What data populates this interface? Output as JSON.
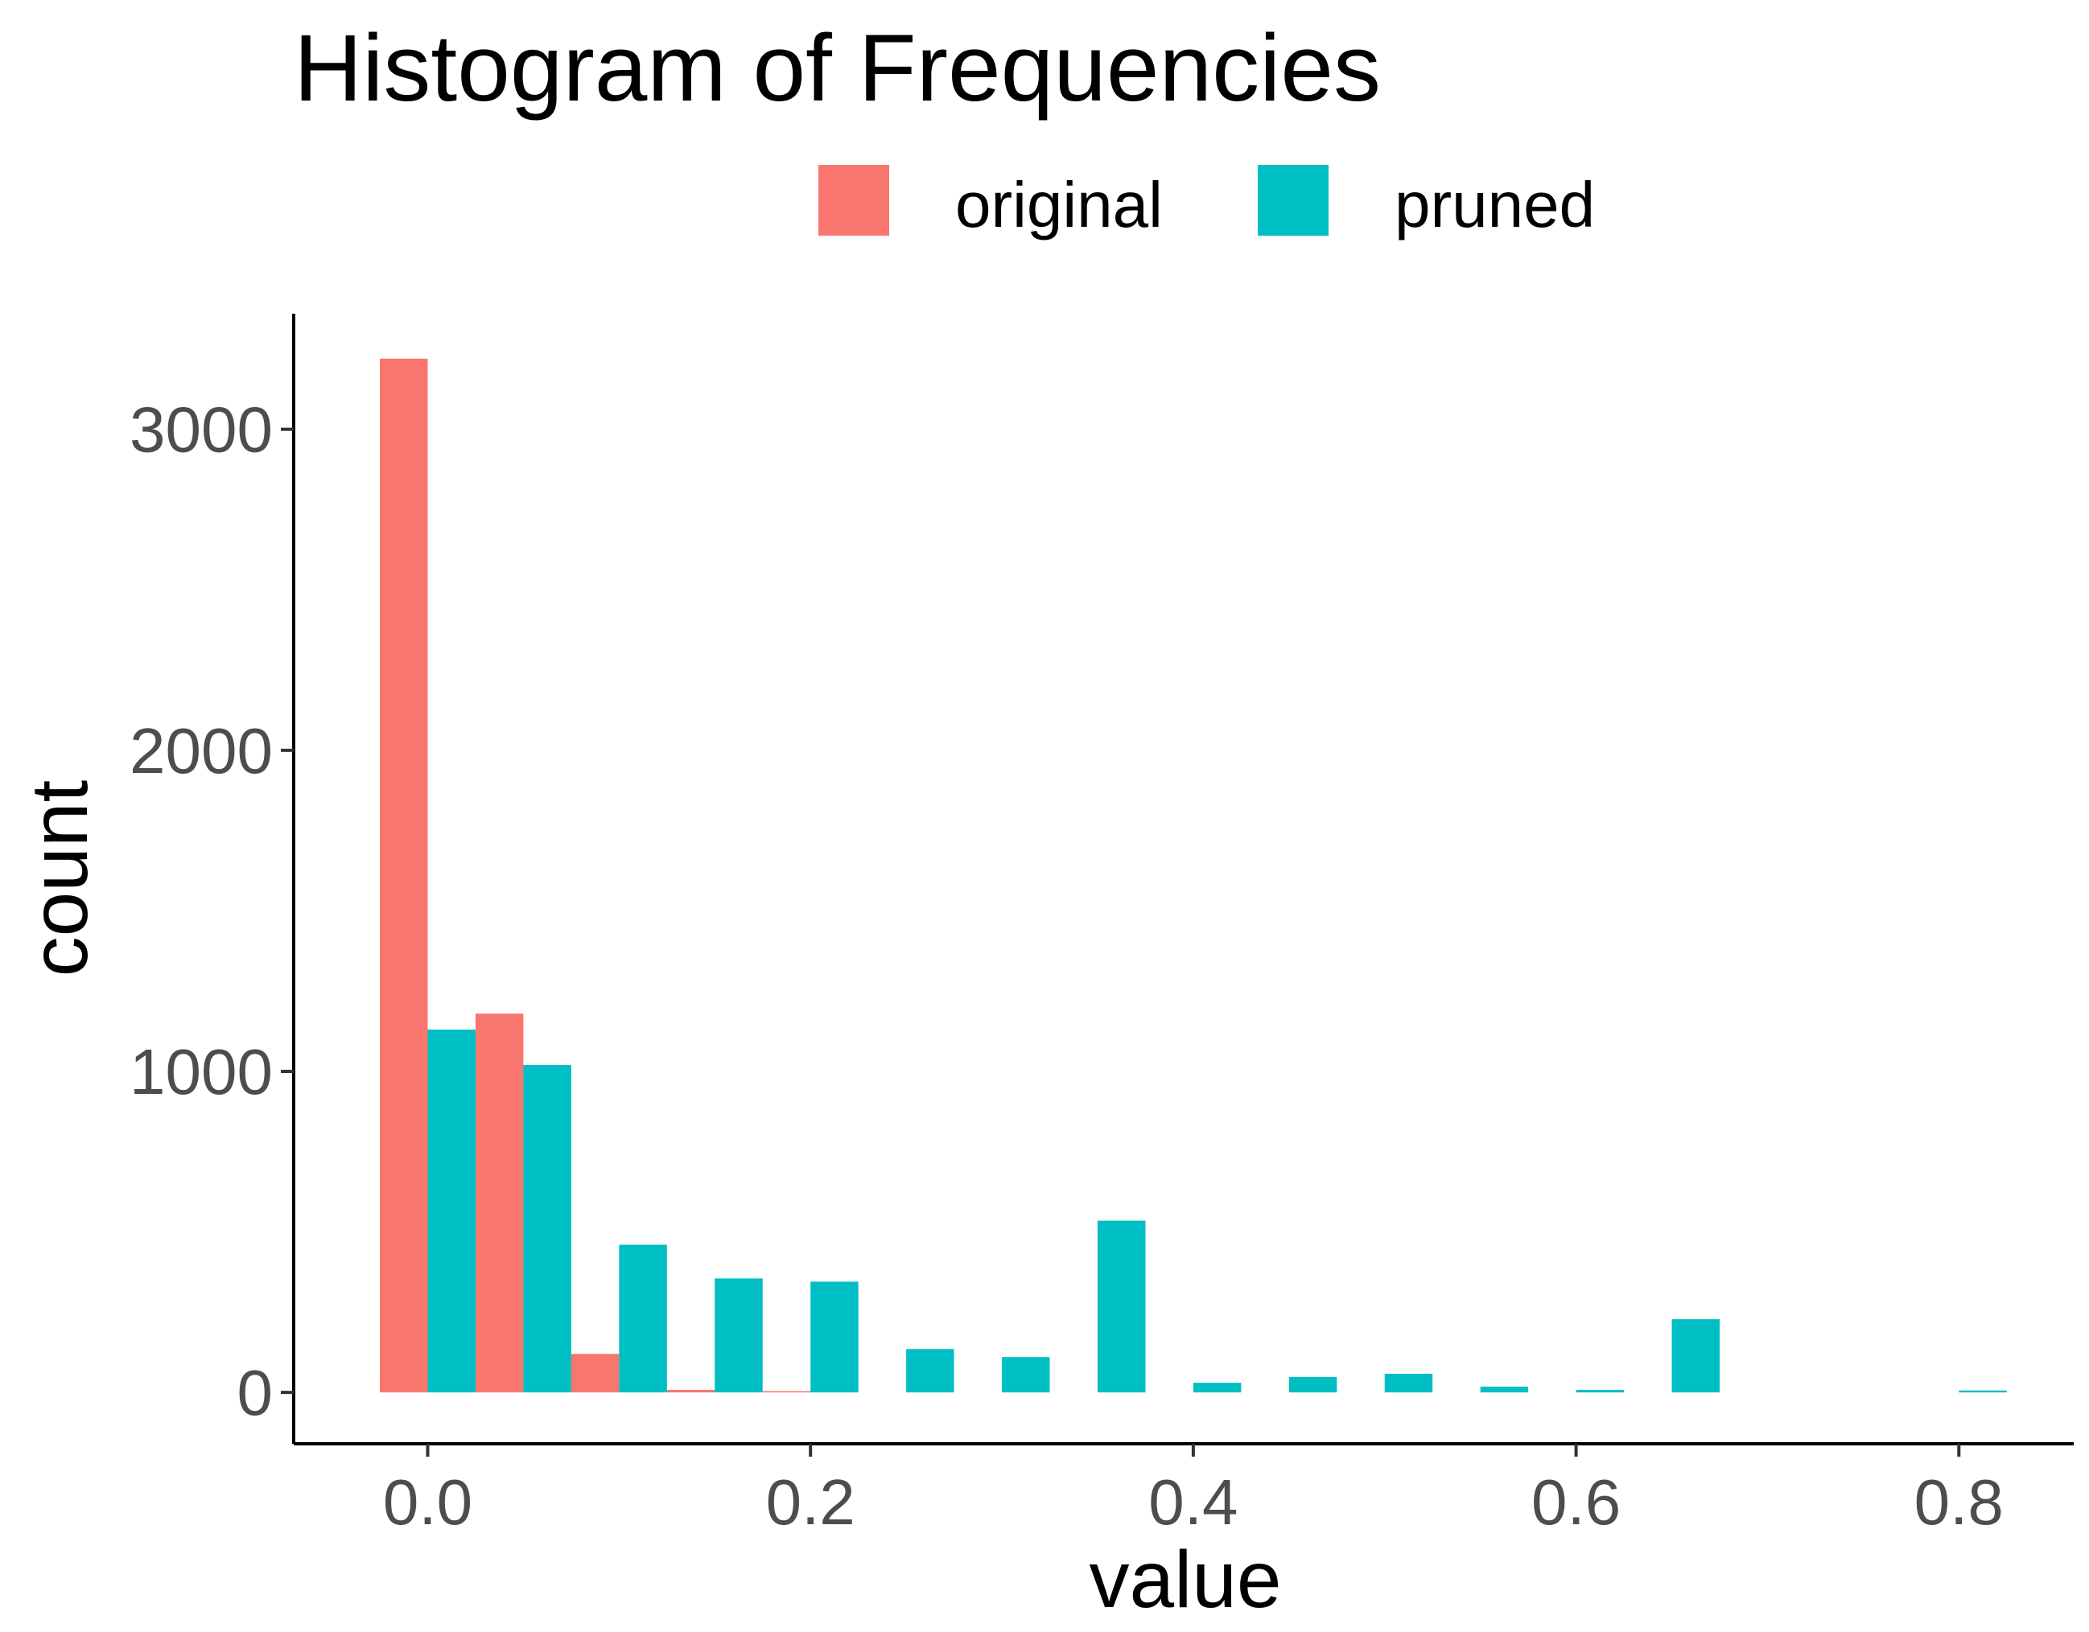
{
  "chart_data": {
    "type": "bar",
    "title": "Histogram of Frequencies",
    "xlabel": "value",
    "ylabel": "count",
    "xlim": [
      -0.07,
      0.86
    ],
    "ylim": [
      -160,
      3360
    ],
    "x_ticks": [
      0.0,
      0.2,
      0.4,
      0.6,
      0.8
    ],
    "x_tick_labels": [
      "0.0",
      "0.2",
      "0.4",
      "0.6",
      "0.8"
    ],
    "y_ticks": [
      0,
      1000,
      2000,
      3000
    ],
    "y_tick_labels": [
      "0",
      "1000",
      "2000",
      "3000"
    ],
    "bin_width": 0.05,
    "legend_position": "top",
    "grid": false,
    "series": [
      {
        "name": "original",
        "color": "#F8766D",
        "bin_centers": [
          0.0,
          0.05,
          0.1,
          0.15,
          0.2
        ],
        "values": [
          3220,
          1180,
          120,
          8,
          4
        ]
      },
      {
        "name": "pruned",
        "color": "#00BFC4",
        "bin_centers": [
          0.0,
          0.05,
          0.1,
          0.15,
          0.2,
          0.25,
          0.3,
          0.35,
          0.4,
          0.45,
          0.5,
          0.55,
          0.6,
          0.65,
          0.8
        ],
        "values": [
          1130,
          1020,
          460,
          355,
          345,
          135,
          110,
          535,
          30,
          48,
          58,
          18,
          8,
          228,
          6
        ]
      }
    ]
  }
}
